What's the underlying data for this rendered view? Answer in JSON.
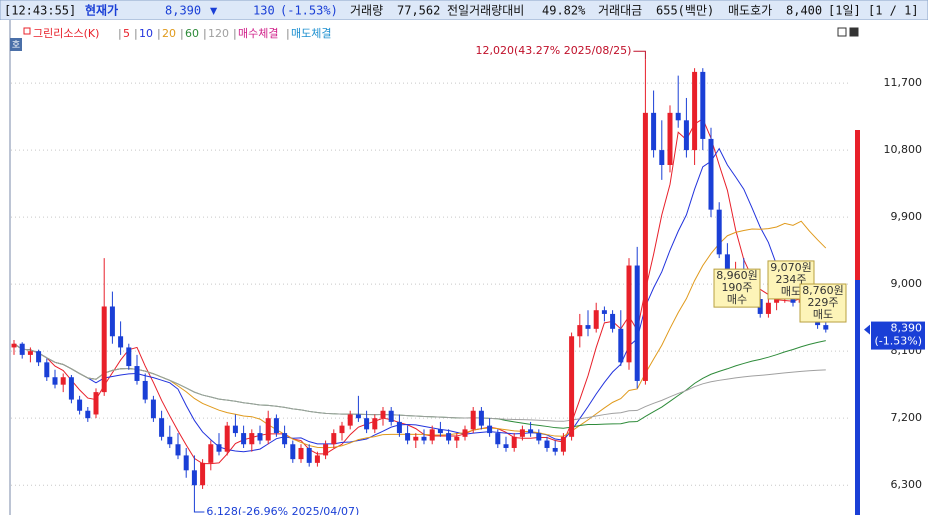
{
  "header": {
    "time": "[12:43:55]",
    "price_label": "현재가",
    "price": "8,390",
    "arrow": "▼",
    "change": "130",
    "change_pct": "(-1.53%)",
    "volume_label": "거래량",
    "volume": "77,562",
    "vol_ratio_label": "전일거래량대비",
    "vol_ratio": "49.82%",
    "amount_label": "거래대금",
    "amount": "655(백만)",
    "ask_label": "매도호가",
    "ask": "8,400",
    "period": "[1일]",
    "page": "[1 / 1]"
  },
  "chart_data": {
    "type": "candlestick",
    "name": "그린리소스(K)",
    "up_color": "#e8202a",
    "down_color": "#1a3fd6",
    "moving_averages": [
      {
        "period": 5,
        "color": "#e8202a"
      },
      {
        "period": 10,
        "color": "#2233dd"
      },
      {
        "period": 20,
        "color": "#e09a1c"
      },
      {
        "period": 60,
        "color": "#2e8b3a"
      },
      {
        "period": 120,
        "color": "#a0a0a0"
      }
    ],
    "legend_extra": [
      {
        "label": "매수체결",
        "color": "#d0208a"
      },
      {
        "label": "매도체결",
        "color": "#1e90d0"
      }
    ],
    "ylim": [
      5900,
      12520
    ],
    "yticks": [
      {
        "value": 6300,
        "label": "6,300"
      },
      {
        "value": 7200,
        "label": "7,200"
      },
      {
        "value": 8100,
        "label": "8,100"
      },
      {
        "value": 9000,
        "label": "9,000"
      },
      {
        "value": 9900,
        "label": "9,900"
      },
      {
        "value": 10800,
        "label": "10,800"
      },
      {
        "value": 11700,
        "label": "11,700"
      }
    ],
    "grid": true,
    "high_label": "12,020(43.27% 2025/08/25)",
    "low_label": "6,128(-26.96% 2025/04/07)",
    "last_price": {
      "value": 8390,
      "label": "8,390",
      "pct": "(-1.53%)"
    },
    "trades": [
      {
        "price": 9070,
        "label": "9,070원",
        "qty": "234주",
        "side": "매도"
      },
      {
        "price": 8760,
        "label": "8,760원",
        "qty": "229주",
        "side": "매도"
      },
      {
        "price": 8960,
        "label": "8,960원",
        "qty": "190주",
        "side": "매수"
      }
    ],
    "candles": [
      [
        8150,
        8250,
        8050,
        8200
      ],
      [
        8200,
        8220,
        8000,
        8050
      ],
      [
        8050,
        8150,
        7950,
        8100
      ],
      [
        8100,
        8120,
        7900,
        7950
      ],
      [
        7950,
        8000,
        7700,
        7750
      ],
      [
        7750,
        7850,
        7600,
        7650
      ],
      [
        7650,
        7800,
        7550,
        7750
      ],
      [
        7750,
        7780,
        7400,
        7450
      ],
      [
        7450,
        7500,
        7250,
        7300
      ],
      [
        7300,
        7350,
        7150,
        7200
      ],
      [
        7250,
        7600,
        7200,
        7550
      ],
      [
        7550,
        9350,
        7500,
        8700
      ],
      [
        8700,
        8900,
        8200,
        8300
      ],
      [
        8300,
        8500,
        8050,
        8150
      ],
      [
        8150,
        8200,
        7850,
        7900
      ],
      [
        7900,
        8050,
        7650,
        7700
      ],
      [
        7700,
        7800,
        7400,
        7450
      ],
      [
        7450,
        7500,
        7150,
        7200
      ],
      [
        7200,
        7300,
        6900,
        6950
      ],
      [
        6950,
        7100,
        6800,
        6850
      ],
      [
        6850,
        7000,
        6650,
        6700
      ],
      [
        6700,
        6800,
        6400,
        6500
      ],
      [
        6500,
        6700,
        6128,
        6300
      ],
      [
        6300,
        6650,
        6250,
        6600
      ],
      [
        6600,
        6900,
        6500,
        6850
      ],
      [
        6850,
        7000,
        6700,
        6750
      ],
      [
        6750,
        7150,
        6700,
        7100
      ],
      [
        7100,
        7250,
        6950,
        7000
      ],
      [
        7000,
        7100,
        6800,
        6850
      ],
      [
        6850,
        7050,
        6750,
        7000
      ],
      [
        7000,
        7100,
        6850,
        6900
      ],
      [
        6900,
        7300,
        6850,
        7200
      ],
      [
        7200,
        7250,
        6950,
        7000
      ],
      [
        7000,
        7100,
        6800,
        6850
      ],
      [
        6850,
        6900,
        6600,
        6650
      ],
      [
        6650,
        6850,
        6600,
        6800
      ],
      [
        6800,
        6850,
        6550,
        6600
      ],
      [
        6600,
        6750,
        6550,
        6700
      ],
      [
        6700,
        6900,
        6650,
        6850
      ],
      [
        6850,
        7050,
        6800,
        7000
      ],
      [
        7000,
        7150,
        6900,
        7100
      ],
      [
        7100,
        7300,
        7050,
        7250
      ],
      [
        7250,
        7500,
        7150,
        7200
      ],
      [
        7200,
        7300,
        7000,
        7050
      ],
      [
        7050,
        7250,
        7000,
        7200
      ],
      [
        7200,
        7350,
        7100,
        7300
      ],
      [
        7300,
        7350,
        7100,
        7150
      ],
      [
        7150,
        7250,
        6950,
        7000
      ],
      [
        7000,
        7100,
        6850,
        6900
      ],
      [
        6900,
        7000,
        6800,
        6950
      ],
      [
        6950,
        7050,
        6850,
        6900
      ],
      [
        6900,
        7100,
        6850,
        7050
      ],
      [
        7050,
        7150,
        6950,
        7000
      ],
      [
        7000,
        7050,
        6850,
        6900
      ],
      [
        6900,
        7000,
        6800,
        6950
      ],
      [
        6950,
        7100,
        6900,
        7050
      ],
      [
        7050,
        7350,
        7000,
        7300
      ],
      [
        7300,
        7350,
        7050,
        7100
      ],
      [
        7100,
        7200,
        6950,
        7000
      ],
      [
        7000,
        7050,
        6800,
        6850
      ],
      [
        6850,
        6950,
        6750,
        6800
      ],
      [
        6800,
        7000,
        6750,
        6950
      ],
      [
        6950,
        7100,
        6900,
        7050
      ],
      [
        7050,
        7150,
        6950,
        7000
      ],
      [
        7000,
        7050,
        6850,
        6900
      ],
      [
        6900,
        6950,
        6750,
        6800
      ],
      [
        6800,
        6900,
        6700,
        6750
      ],
      [
        6750,
        7000,
        6700,
        6950
      ],
      [
        6950,
        8350,
        6900,
        8300
      ],
      [
        8300,
        8600,
        8150,
        8450
      ],
      [
        8450,
        8650,
        8300,
        8400
      ],
      [
        8400,
        8750,
        8350,
        8650
      ],
      [
        8650,
        8700,
        8500,
        8600
      ],
      [
        8600,
        8650,
        8350,
        8400
      ],
      [
        8400,
        8650,
        7900,
        7950
      ],
      [
        7950,
        9350,
        7850,
        9250
      ],
      [
        9250,
        9500,
        7600,
        7700
      ],
      [
        7700,
        12020,
        7650,
        11300
      ],
      [
        11300,
        11600,
        10700,
        10800
      ],
      [
        10800,
        11200,
        10400,
        10600
      ],
      [
        10600,
        11400,
        10500,
        11300
      ],
      [
        11300,
        11800,
        11100,
        11200
      ],
      [
        11200,
        11500,
        10700,
        10800
      ],
      [
        10800,
        11900,
        10600,
        11850
      ],
      [
        11850,
        11900,
        10800,
        10950
      ],
      [
        10950,
        11100,
        9900,
        10000
      ],
      [
        10000,
        10100,
        9350,
        9400
      ],
      [
        9400,
        9550,
        9050,
        9100
      ],
      [
        9100,
        9300,
        8950,
        9200
      ],
      [
        9200,
        9350,
        8850,
        8950
      ],
      [
        8950,
        9100,
        8700,
        8800
      ],
      [
        8800,
        8900,
        8550,
        8600
      ],
      [
        8600,
        8800,
        8550,
        8750
      ],
      [
        8750,
        8900,
        8650,
        8850
      ],
      [
        8850,
        9000,
        8750,
        8900
      ],
      [
        8900,
        9050,
        8700,
        8750
      ],
      [
        8750,
        8900,
        8650,
        8800
      ],
      [
        8800,
        8850,
        8600,
        8650
      ],
      [
        8650,
        8700,
        8400,
        8450
      ],
      [
        8450,
        8620,
        8350,
        8390
      ]
    ]
  }
}
